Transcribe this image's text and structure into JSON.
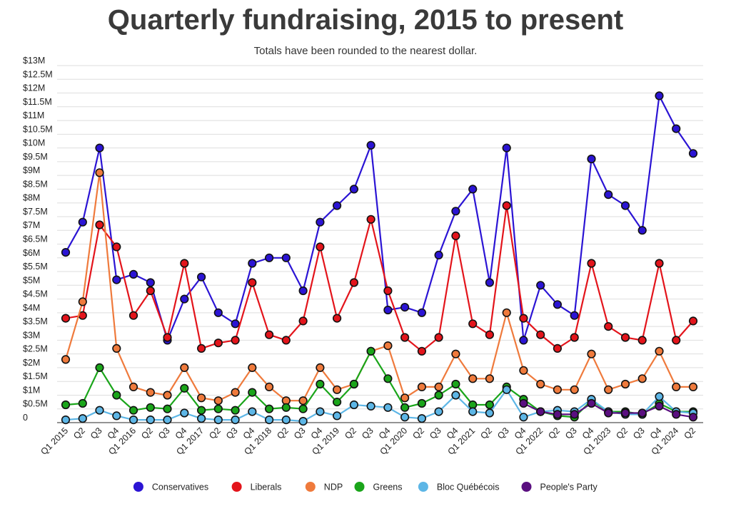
{
  "chart_data": {
    "type": "line",
    "title": "Quarterly fundraising, 2015 to present",
    "subtitle": "Totals have been rounded to the nearest dollar.",
    "xlabel": "",
    "ylabel": "",
    "ylim": [
      0,
      13000000
    ],
    "y_ticks": [
      {
        "value": 0,
        "label": "0"
      },
      {
        "value": 500000,
        "label": "$0.5M"
      },
      {
        "value": 1000000,
        "label": "$1M"
      },
      {
        "value": 1500000,
        "label": "$1.5M"
      },
      {
        "value": 2000000,
        "label": "$2M"
      },
      {
        "value": 2500000,
        "label": "$2.5M"
      },
      {
        "value": 3000000,
        "label": "$3M"
      },
      {
        "value": 3500000,
        "label": "$3.5M"
      },
      {
        "value": 4000000,
        "label": "$4M"
      },
      {
        "value": 4500000,
        "label": "$4.5M"
      },
      {
        "value": 5000000,
        "label": "$5M"
      },
      {
        "value": 5500000,
        "label": "$5.5M"
      },
      {
        "value": 6000000,
        "label": "$6M"
      },
      {
        "value": 6500000,
        "label": "$6.5M"
      },
      {
        "value": 7000000,
        "label": "$7M"
      },
      {
        "value": 7500000,
        "label": "$7.5M"
      },
      {
        "value": 8000000,
        "label": "$8M"
      },
      {
        "value": 8500000,
        "label": "$8.5M"
      },
      {
        "value": 9000000,
        "label": "$9M"
      },
      {
        "value": 9500000,
        "label": "$9.5M"
      },
      {
        "value": 10000000,
        "label": "$10M"
      },
      {
        "value": 10500000,
        "label": "$10.5M"
      },
      {
        "value": 11000000,
        "label": "$11M"
      },
      {
        "value": 11500000,
        "label": "$11.5M"
      },
      {
        "value": 12000000,
        "label": "$12M"
      },
      {
        "value": 12500000,
        "label": "$12.5M"
      },
      {
        "value": 13000000,
        "label": "$13M"
      }
    ],
    "categories": [
      "Q1 2015",
      "Q2",
      "Q3",
      "Q4",
      "Q1 2016",
      "Q2",
      "Q3",
      "Q4",
      "Q1 2017",
      "Q2",
      "Q3",
      "Q4",
      "Q1 2018",
      "Q2",
      "Q3",
      "Q4",
      "Q1 2019",
      "Q2",
      "Q3",
      "Q4",
      "Q1 2020",
      "Q2",
      "Q3",
      "Q4",
      "Q1 2021",
      "Q2",
      "Q3",
      "Q4",
      "Q1 2022",
      "Q2",
      "Q3",
      "Q4",
      "Q1 2023",
      "Q2",
      "Q3",
      "Q4",
      "Q1 2024",
      "Q2"
    ],
    "legend_position": "bottom",
    "series": [
      {
        "name": "Conservatives",
        "color": "#2b14d4",
        "values": [
          6200000,
          7300000,
          10000000,
          5200000,
          5400000,
          5100000,
          3000000,
          4500000,
          5300000,
          4000000,
          3600000,
          5800000,
          6000000,
          6000000,
          4800000,
          7300000,
          7900000,
          8500000,
          10100000,
          4100000,
          4200000,
          4000000,
          6100000,
          7700000,
          8500000,
          5100000,
          10000000,
          3000000,
          5000000,
          4300000,
          3900000,
          9600000,
          8300000,
          7900000,
          7000000,
          11900000,
          10700000,
          9800000
        ]
      },
      {
        "name": "Liberals",
        "color": "#e3141b",
        "values": [
          3800000,
          3900000,
          7200000,
          6400000,
          3900000,
          4800000,
          3100000,
          5800000,
          2700000,
          2900000,
          3000000,
          5100000,
          3200000,
          3000000,
          3700000,
          6400000,
          3800000,
          5100000,
          7400000,
          4800000,
          3100000,
          2600000,
          3100000,
          6800000,
          3600000,
          3200000,
          7900000,
          3800000,
          3200000,
          2700000,
          3100000,
          5800000,
          3500000,
          3100000,
          3000000,
          5800000,
          3000000,
          3700000
        ]
      },
      {
        "name": "NDP",
        "color": "#ef7a3c",
        "values": [
          2300000,
          4400000,
          9100000,
          2700000,
          1300000,
          1100000,
          1000000,
          2000000,
          900000,
          800000,
          1100000,
          2000000,
          1300000,
          800000,
          800000,
          2000000,
          1200000,
          1400000,
          2600000,
          2800000,
          900000,
          1300000,
          1300000,
          2500000,
          1600000,
          1600000,
          4000000,
          1900000,
          1400000,
          1200000,
          1200000,
          2500000,
          1200000,
          1400000,
          1600000,
          2600000,
          1300000,
          1300000
        ]
      },
      {
        "name": "Greens",
        "color": "#1aa51a",
        "values": [
          650000,
          700000,
          2000000,
          1000000,
          450000,
          550000,
          500000,
          1250000,
          450000,
          500000,
          450000,
          1100000,
          500000,
          550000,
          500000,
          1400000,
          750000,
          1400000,
          2600000,
          1600000,
          550000,
          700000,
          1000000,
          1400000,
          650000,
          650000,
          1300000,
          850000,
          400000,
          250000,
          200000,
          800000,
          400000,
          400000,
          300000,
          700000,
          400000,
          400000
        ]
      },
      {
        "name": "Bloc Québécois",
        "color": "#5db6e6",
        "values": [
          100000,
          150000,
          450000,
          250000,
          100000,
          100000,
          100000,
          350000,
          150000,
          100000,
          100000,
          400000,
          100000,
          100000,
          50000,
          400000,
          250000,
          650000,
          600000,
          550000,
          200000,
          150000,
          400000,
          1000000,
          400000,
          350000,
          1200000,
          200000,
          400000,
          450000,
          400000,
          850000,
          400000,
          300000,
          300000,
          950000,
          400000,
          350000
        ]
      },
      {
        "name": "People's Party",
        "color": "#5a0f80",
        "values": [
          null,
          null,
          null,
          null,
          null,
          null,
          null,
          null,
          null,
          null,
          null,
          null,
          null,
          null,
          null,
          null,
          null,
          null,
          null,
          null,
          null,
          null,
          null,
          null,
          null,
          null,
          null,
          700000,
          400000,
          300000,
          300000,
          700000,
          350000,
          350000,
          350000,
          600000,
          300000,
          200000
        ]
      }
    ]
  }
}
